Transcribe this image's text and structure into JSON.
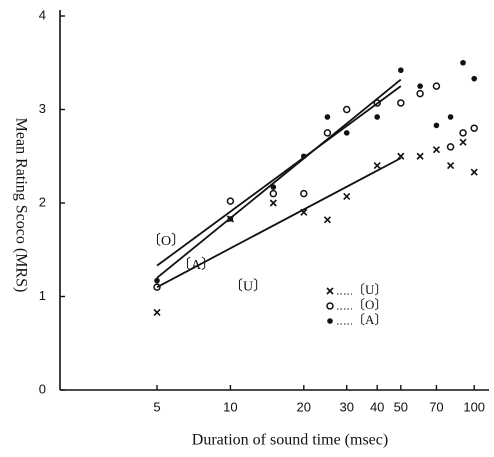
{
  "chart_data": {
    "type": "scatter",
    "x_label": "Duration of sound time (msec)",
    "y_label": "Mean Rating Scoco (MRS)",
    "x_scale": "log",
    "xlim": [
      2,
      115
    ],
    "ylim": [
      0,
      4
    ],
    "xticks": [
      5,
      10,
      20,
      30,
      40,
      50,
      70,
      100
    ],
    "yticks": [
      0,
      1,
      2,
      3,
      4
    ],
    "series": [
      {
        "name": "〔U〕",
        "marker": "x",
        "color": "#111",
        "x": [
          5,
          10,
          15,
          20,
          25,
          30,
          40,
          50,
          60,
          70,
          80,
          90,
          100
        ],
        "values": [
          0.83,
          1.83,
          2.0,
          1.9,
          1.82,
          2.07,
          2.4,
          2.5,
          2.5,
          2.57,
          2.4,
          2.65,
          2.33
        ]
      },
      {
        "name": "〔O〕",
        "marker": "open-circle",
        "color": "#111",
        "x": [
          5,
          10,
          15,
          20,
          25,
          30,
          40,
          50,
          60,
          70,
          80,
          90,
          100
        ],
        "values": [
          1.1,
          2.02,
          2.1,
          2.1,
          2.75,
          3.0,
          3.07,
          3.07,
          3.17,
          3.25,
          2.6,
          2.75,
          2.8
        ]
      },
      {
        "name": "〔A〕",
        "marker": "filled-circle",
        "color": "#111",
        "x": [
          5,
          10,
          15,
          20,
          25,
          30,
          40,
          50,
          60,
          70,
          80,
          90,
          100
        ],
        "values": [
          1.17,
          1.83,
          2.17,
          2.5,
          2.92,
          2.75,
          2.92,
          3.42,
          3.25,
          2.83,
          2.92,
          3.5,
          3.33
        ]
      }
    ],
    "fit_lines": [
      {
        "label": "〔O〕",
        "x": [
          5,
          50
        ],
        "values": [
          1.33,
          3.25
        ]
      },
      {
        "label": "〔A〕",
        "x": [
          5,
          50
        ],
        "values": [
          1.2,
          3.32
        ]
      },
      {
        "label": "〔U〕",
        "x": [
          5,
          50
        ],
        "values": [
          1.1,
          2.48
        ]
      }
    ]
  }
}
